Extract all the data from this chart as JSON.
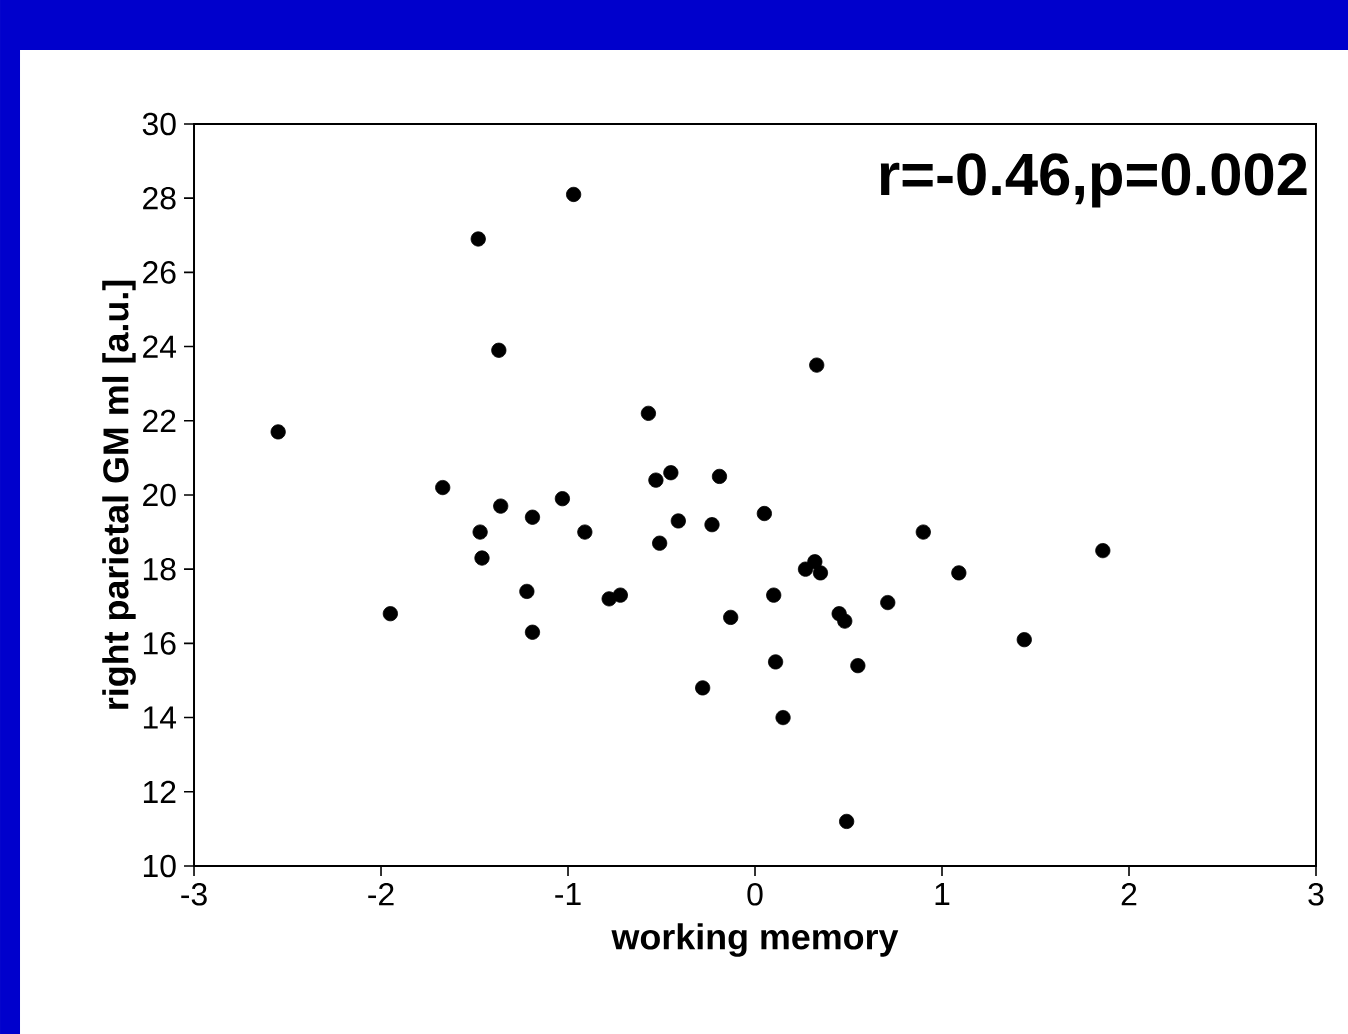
{
  "chart_data": {
    "type": "scatter",
    "xlabel": "working memory",
    "ylabel": "right parietal GM ml [a.u.]",
    "annotations": [
      "r=-0.46,p=0.002"
    ],
    "xlim": [
      -3,
      3
    ],
    "xticks": [
      -3,
      -2,
      -1,
      0,
      1,
      2,
      3
    ],
    "ylim": [
      10,
      30
    ],
    "yticks": [
      10,
      12,
      14,
      16,
      18,
      20,
      22,
      24,
      26,
      28,
      30
    ],
    "grid": false,
    "marker": "circle",
    "series": [
      {
        "color": "#000000",
        "x": [
          -2.55,
          -1.95,
          -1.67,
          -1.48,
          -1.47,
          -1.46,
          -1.37,
          -1.36,
          -1.22,
          -1.19,
          -1.19,
          -1.03,
          -0.97,
          -0.91,
          -0.78,
          -0.72,
          -0.57,
          -0.53,
          -0.51,
          -0.45,
          -0.41,
          -0.28,
          -0.23,
          -0.19,
          -0.13,
          0.05,
          0.1,
          0.11,
          0.15,
          0.27,
          0.32,
          0.33,
          0.35,
          0.45,
          0.48,
          0.49,
          0.55,
          0.71,
          0.9,
          1.09,
          1.44,
          1.86
        ],
        "values": [
          21.7,
          16.8,
          20.2,
          26.9,
          19.0,
          18.3,
          23.9,
          19.7,
          17.4,
          16.3,
          19.4,
          19.9,
          28.1,
          19.0,
          17.2,
          17.3,
          22.2,
          20.4,
          18.7,
          20.6,
          19.3,
          14.8,
          19.2,
          20.5,
          16.7,
          19.5,
          17.3,
          15.5,
          14.0,
          18.0,
          18.2,
          23.5,
          17.9,
          16.8,
          16.6,
          11.2,
          15.4,
          17.1,
          19.0,
          17.9,
          16.1,
          18.5
        ]
      }
    ]
  }
}
